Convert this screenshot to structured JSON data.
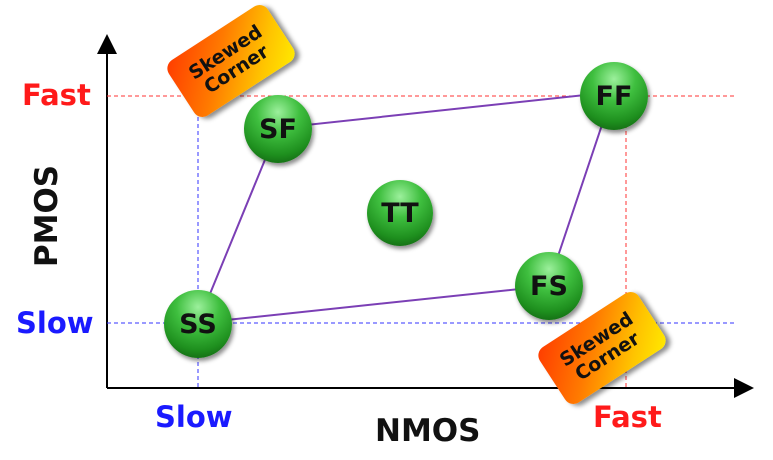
{
  "axes": {
    "x_title": "NMOS",
    "y_title": "PMOS",
    "x_slow": "Slow",
    "x_fast": "Fast",
    "y_slow": "Slow",
    "y_fast": "Fast"
  },
  "corners": {
    "ss": "SS",
    "sf": "SF",
    "tt": "TT",
    "fs": "FS",
    "ff": "FF"
  },
  "skewed_top": {
    "line1": "Skewed",
    "line2": "Corner"
  },
  "skewed_bottom": {
    "line1": "Skewed",
    "line2": "Corner"
  },
  "colors": {
    "fast": "#ff1a1a",
    "slow": "#1a1aff",
    "polygon": "#7b3fb5"
  }
}
